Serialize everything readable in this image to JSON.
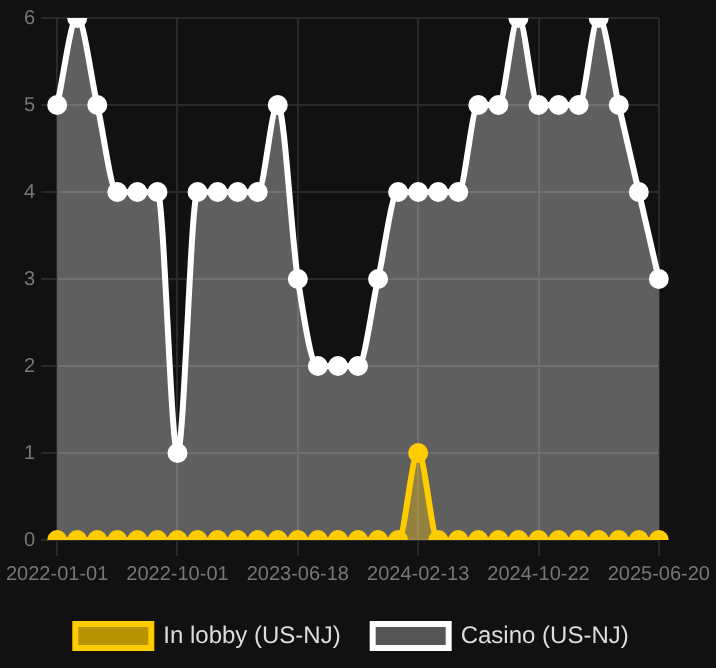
{
  "chart_data": {
    "type": "area",
    "categories": [
      "2022-01-01",
      null,
      null,
      null,
      null,
      null,
      "2022-10-01",
      null,
      null,
      null,
      null,
      null,
      "2023-06-18",
      null,
      null,
      null,
      null,
      null,
      "2024-02-13",
      null,
      null,
      null,
      null,
      null,
      "2024-10-22",
      null,
      null,
      null,
      null,
      null,
      "2025-06-20"
    ],
    "series": [
      {
        "name": "In lobby (US-NJ)",
        "color": "#ffcc00",
        "values": [
          0,
          0,
          0,
          0,
          0,
          0,
          0,
          0,
          0,
          0,
          0,
          0,
          0,
          0,
          0,
          0,
          0,
          0,
          1,
          0,
          0,
          0,
          0,
          0,
          0,
          0,
          0,
          0,
          0,
          0,
          0
        ]
      },
      {
        "name": "Casino (US-NJ)",
        "color": "#ffffff",
        "values": [
          5,
          6,
          5,
          4,
          4,
          4,
          1,
          4,
          4,
          4,
          4,
          5,
          3,
          2,
          2,
          2,
          3,
          4,
          4,
          4,
          4,
          5,
          5,
          6,
          5,
          5,
          5,
          6,
          5,
          4,
          3
        ]
      }
    ],
    "ylim": [
      0,
      6
    ],
    "yticks": [
      0,
      1,
      2,
      3,
      4,
      5,
      6
    ],
    "grid": true,
    "legend": "bottom",
    "marker": "circle"
  }
}
